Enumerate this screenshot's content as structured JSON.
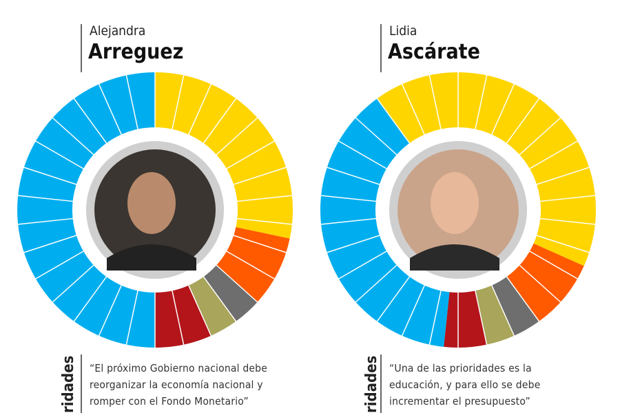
{
  "chart_data": [
    {
      "type": "donut",
      "start_angle": 0,
      "values": [
        8.5,
        2.5,
        1,
        1,
        2,
        15
      ],
      "colors": [
        "#ffd500",
        "#ff5a00",
        "#6e6e6e",
        "#a9a55a",
        "#b3151b",
        "#00aeef"
      ]
    },
    {
      "type": "donut",
      "start_angle": -36,
      "values": [
        12.5,
        2.5,
        1,
        1,
        1.5,
        11.5
      ],
      "colors": [
        "#ffd500",
        "#ff5a00",
        "#6e6e6e",
        "#a9a55a",
        "#b3151b",
        "#00aeef"
      ]
    }
  ],
  "profiles": [
    {
      "first_name": "Alejandra",
      "last_name": "Arreguez",
      "side_label": "ridades",
      "quote": [
        "“El próximo Gobierno nacional debe",
        "reorganizar la economía nacional y",
        "romper con el Fondo Monetario”"
      ]
    },
    {
      "first_name": "Lidia",
      "last_name": "Ascárate",
      "side_label": "ridades",
      "quote": [
        "“Una de las prioridades es la",
        "educación, y para ello se debe",
        "incrementar el presupuesto”"
      ]
    }
  ]
}
